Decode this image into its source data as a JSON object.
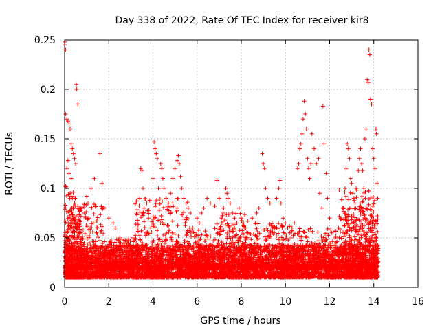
{
  "chart_data": {
    "type": "scatter",
    "title": "Day 338 of 2022, Rate Of TEC Index for receiver kir8",
    "xlabel": "GPS time / hours",
    "ylabel": "ROTI / TECUs",
    "xlim": [
      0,
      16
    ],
    "ylim": [
      0,
      0.25
    ],
    "x_ticks": [
      "0",
      "2",
      "4",
      "6",
      "8",
      "10",
      "12",
      "14",
      "16"
    ],
    "y_ticks": [
      "0",
      "0.05",
      "0.1",
      "0.15",
      "0.2",
      "0.25"
    ],
    "grid": true,
    "marker": "+",
    "color": "#ff0000",
    "x_range_of_data": [
      0,
      14.2
    ],
    "dense_band": [
      0.01,
      0.04
    ],
    "series": [
      {
        "points": [
          [
            0.0,
            0.245
          ],
          [
            0.02,
            0.248
          ],
          [
            0.05,
            0.24
          ],
          [
            0.05,
            0.175
          ],
          [
            0.1,
            0.17
          ],
          [
            0.15,
            0.168
          ],
          [
            0.2,
            0.165
          ],
          [
            0.25,
            0.16
          ],
          [
            0.3,
            0.145
          ],
          [
            0.35,
            0.14
          ],
          [
            0.4,
            0.135
          ],
          [
            0.45,
            0.13
          ],
          [
            0.5,
            0.125
          ],
          [
            0.53,
            0.205
          ],
          [
            0.55,
            0.2
          ],
          [
            0.6,
            0.185
          ],
          [
            0.15,
            0.128
          ],
          [
            0.1,
            0.12
          ],
          [
            0.2,
            0.115
          ],
          [
            0.3,
            0.11
          ],
          [
            0.05,
            0.102
          ],
          [
            0.25,
            0.095
          ],
          [
            0.35,
            0.09
          ],
          [
            0.45,
            0.085
          ],
          [
            0.6,
            0.082
          ],
          [
            0.75,
            0.08
          ],
          [
            0.9,
            0.075
          ],
          [
            1.1,
            0.07
          ],
          [
            1.3,
            0.065
          ],
          [
            1.5,
            0.06
          ],
          [
            1.6,
            0.135
          ],
          [
            1.35,
            0.11
          ],
          [
            1.2,
            0.1
          ],
          [
            1.0,
            0.092
          ],
          [
            1.7,
            0.105
          ],
          [
            1.8,
            0.08
          ],
          [
            2.0,
            0.07
          ],
          [
            2.2,
            0.065
          ],
          [
            2.3,
            0.06
          ],
          [
            2.5,
            0.05
          ],
          [
            2.7,
            0.045
          ],
          [
            2.9,
            0.04
          ],
          [
            3.1,
            0.05
          ],
          [
            3.3,
            0.06
          ],
          [
            3.45,
            0.12
          ],
          [
            3.5,
            0.118
          ],
          [
            3.55,
            0.1
          ],
          [
            3.4,
            0.09
          ],
          [
            3.6,
            0.08
          ],
          [
            3.8,
            0.07
          ],
          [
            3.9,
            0.06
          ],
          [
            4.05,
            0.147
          ],
          [
            4.1,
            0.14
          ],
          [
            4.15,
            0.135
          ],
          [
            4.2,
            0.13
          ],
          [
            4.0,
            0.11
          ],
          [
            4.25,
            0.1
          ],
          [
            4.35,
            0.125
          ],
          [
            4.4,
            0.12
          ],
          [
            4.45,
            0.11
          ],
          [
            4.5,
            0.1
          ],
          [
            4.6,
            0.09
          ],
          [
            4.7,
            0.085
          ],
          [
            4.8,
            0.095
          ],
          [
            4.9,
            0.11
          ],
          [
            5.0,
            0.12
          ],
          [
            5.1,
            0.128
          ],
          [
            5.15,
            0.133
          ],
          [
            5.2,
            0.125
          ],
          [
            5.25,
            0.112
          ],
          [
            5.3,
            0.1
          ],
          [
            5.4,
            0.09
          ],
          [
            5.5,
            0.085
          ],
          [
            5.6,
            0.08
          ],
          [
            5.7,
            0.075
          ],
          [
            5.8,
            0.06
          ],
          [
            5.9,
            0.055
          ],
          [
            6.0,
            0.07
          ],
          [
            6.1,
            0.065
          ],
          [
            6.2,
            0.075
          ],
          [
            6.3,
            0.08
          ],
          [
            6.45,
            0.09
          ],
          [
            6.6,
            0.085
          ],
          [
            6.8,
            0.082
          ],
          [
            6.9,
            0.108
          ],
          [
            7.0,
            0.09
          ],
          [
            7.1,
            0.07
          ],
          [
            7.2,
            0.08
          ],
          [
            7.3,
            0.1
          ],
          [
            7.35,
            0.095
          ],
          [
            7.4,
            0.09
          ],
          [
            7.5,
            0.085
          ],
          [
            7.6,
            0.075
          ],
          [
            7.7,
            0.07
          ],
          [
            7.8,
            0.065
          ],
          [
            7.9,
            0.08
          ],
          [
            8.0,
            0.07
          ],
          [
            8.1,
            0.065
          ],
          [
            8.2,
            0.06
          ],
          [
            8.3,
            0.055
          ],
          [
            8.5,
            0.07
          ],
          [
            8.7,
            0.075
          ],
          [
            8.8,
            0.08
          ],
          [
            8.95,
            0.135
          ],
          [
            9.0,
            0.125
          ],
          [
            9.05,
            0.12
          ],
          [
            9.1,
            0.1
          ],
          [
            9.2,
            0.09
          ],
          [
            9.3,
            0.085
          ],
          [
            9.4,
            0.06
          ],
          [
            9.5,
            0.055
          ],
          [
            9.6,
            0.09
          ],
          [
            9.7,
            0.1
          ],
          [
            9.75,
            0.108
          ],
          [
            9.8,
            0.085
          ],
          [
            9.9,
            0.07
          ],
          [
            10.0,
            0.065
          ],
          [
            10.1,
            0.06
          ],
          [
            10.2,
            0.055
          ],
          [
            10.3,
            0.06
          ],
          [
            10.4,
            0.065
          ],
          [
            10.55,
            0.12
          ],
          [
            10.6,
            0.125
          ],
          [
            10.65,
            0.14
          ],
          [
            10.7,
            0.145
          ],
          [
            10.75,
            0.155
          ],
          [
            10.8,
            0.17
          ],
          [
            10.85,
            0.188
          ],
          [
            10.9,
            0.175
          ],
          [
            10.95,
            0.16
          ],
          [
            11.0,
            0.13
          ],
          [
            11.05,
            0.12
          ],
          [
            11.1,
            0.11
          ],
          [
            11.15,
            0.125
          ],
          [
            11.2,
            0.155
          ],
          [
            11.3,
            0.14
          ],
          [
            11.4,
            0.125
          ],
          [
            11.5,
            0.13
          ],
          [
            11.55,
            0.095
          ],
          [
            11.65,
            0.08
          ],
          [
            11.7,
            0.183
          ],
          [
            11.75,
            0.145
          ],
          [
            11.85,
            0.115
          ],
          [
            11.9,
            0.09
          ],
          [
            12.0,
            0.07
          ],
          [
            12.1,
            0.055
          ],
          [
            12.25,
            0.05
          ],
          [
            12.4,
            0.06
          ],
          [
            12.5,
            0.07
          ],
          [
            12.6,
            0.08
          ],
          [
            12.7,
            0.1
          ],
          [
            12.75,
            0.12
          ],
          [
            12.8,
            0.145
          ],
          [
            12.85,
            0.14
          ],
          [
            12.9,
            0.13
          ],
          [
            12.95,
            0.11
          ],
          [
            13.0,
            0.105
          ],
          [
            13.05,
            0.095
          ],
          [
            13.1,
            0.09
          ],
          [
            13.15,
            0.085
          ],
          [
            13.2,
            0.1
          ],
          [
            13.3,
            0.118
          ],
          [
            13.35,
            0.13
          ],
          [
            13.4,
            0.14
          ],
          [
            13.45,
            0.125
          ],
          [
            13.5,
            0.118
          ],
          [
            13.55,
            0.1
          ],
          [
            13.6,
            0.15
          ],
          [
            13.65,
            0.16
          ],
          [
            13.7,
            0.21
          ],
          [
            13.75,
            0.207
          ],
          [
            13.78,
            0.24
          ],
          [
            13.82,
            0.235
          ],
          [
            13.85,
            0.19
          ],
          [
            13.9,
            0.185
          ],
          [
            13.95,
            0.14
          ],
          [
            14.0,
            0.13
          ],
          [
            14.05,
            0.12
          ],
          [
            14.1,
            0.16
          ],
          [
            14.12,
            0.155
          ],
          [
            14.15,
            0.105
          ],
          [
            14.18,
            0.09
          ]
        ]
      }
    ]
  }
}
